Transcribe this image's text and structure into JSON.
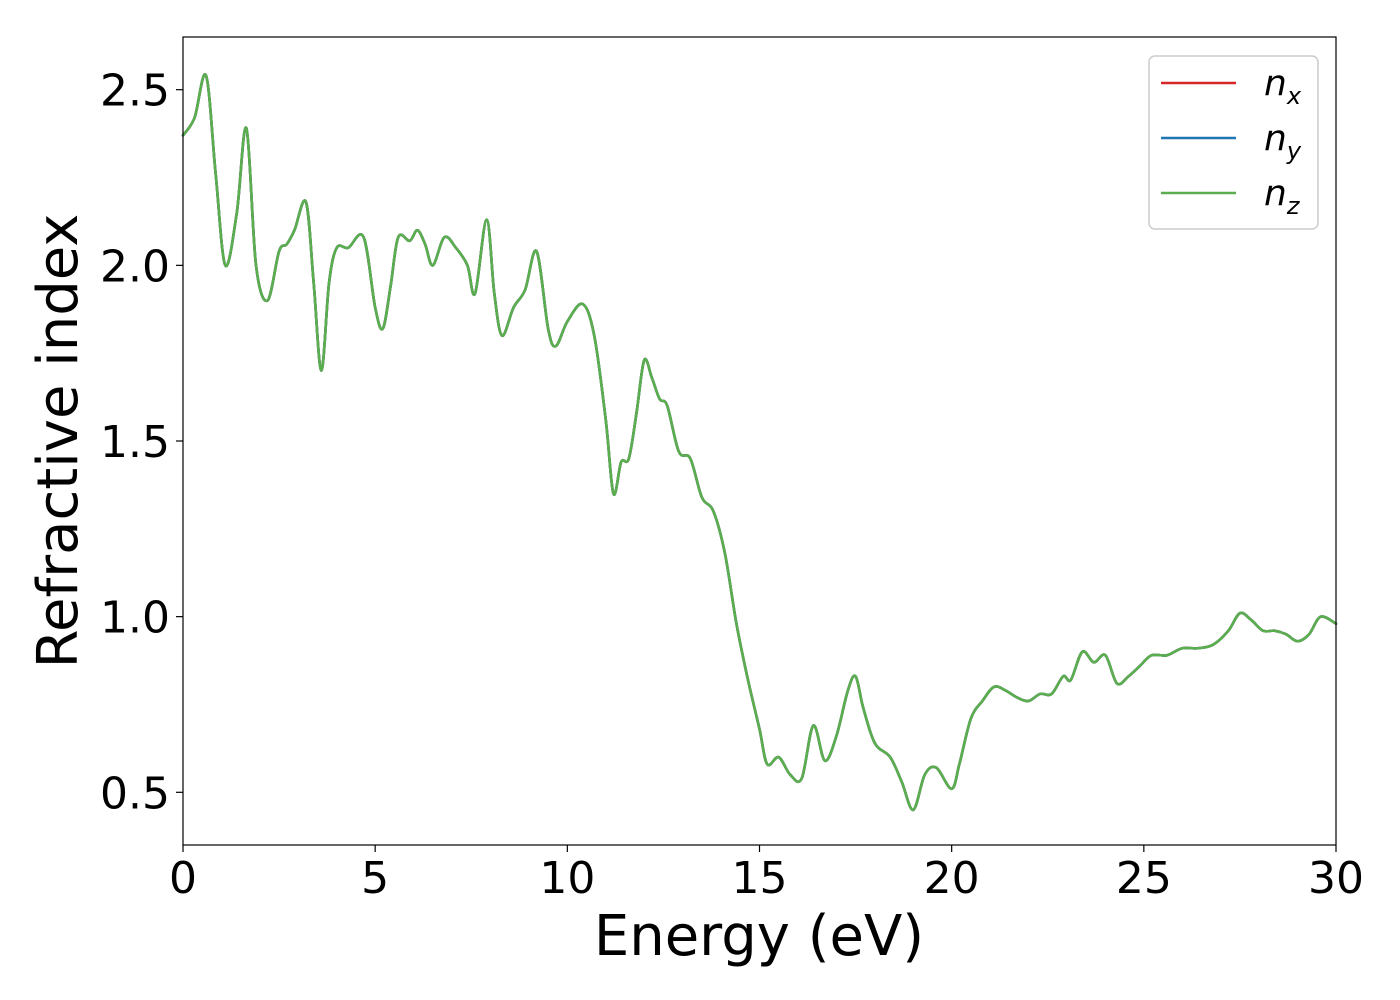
{
  "chart_data": {
    "type": "line",
    "title": "",
    "xlabel": "Energy (eV)",
    "ylabel": "Refractive index",
    "xlim": [
      0,
      30
    ],
    "ylim": [
      0.35,
      2.65
    ],
    "xticks": [
      0,
      5,
      10,
      15,
      20,
      25,
      30
    ],
    "xtick_labels": [
      "0",
      "5",
      "10",
      "15",
      "20",
      "25",
      "30"
    ],
    "yticks": [
      0.5,
      1.0,
      1.5,
      2.0,
      2.5
    ],
    "ytick_labels": [
      "0.5",
      "1.0",
      "1.5",
      "2.0",
      "2.5"
    ],
    "grid": false,
    "legend_position": "top-right",
    "x": [
      0,
      0.3,
      0.6,
      0.85,
      1.1,
      1.4,
      1.65,
      1.9,
      2.2,
      2.5,
      2.7,
      2.9,
      3.2,
      3.4,
      3.6,
      3.8,
      4.0,
      4.3,
      4.7,
      5.0,
      5.2,
      5.4,
      5.6,
      5.9,
      6.1,
      6.3,
      6.5,
      6.8,
      7.1,
      7.4,
      7.6,
      7.9,
      8.1,
      8.3,
      8.6,
      8.9,
      9.2,
      9.5,
      9.7,
      10.0,
      10.4,
      10.7,
      11.0,
      11.2,
      11.4,
      11.6,
      11.8,
      12.0,
      12.2,
      12.4,
      12.6,
      12.9,
      13.2,
      13.5,
      13.8,
      14.1,
      14.4,
      14.7,
      15.0,
      15.2,
      15.5,
      15.8,
      16.1,
      16.4,
      16.7,
      17.0,
      17.3,
      17.5,
      17.7,
      18.0,
      18.4,
      18.7,
      19.0,
      19.3,
      19.6,
      20.0,
      20.2,
      20.5,
      20.8,
      21.1,
      21.4,
      21.7,
      22.0,
      22.3,
      22.6,
      22.9,
      23.1,
      23.4,
      23.7,
      24.0,
      24.3,
      24.6,
      24.9,
      25.2,
      25.6,
      26.0,
      26.4,
      26.8,
      27.2,
      27.5,
      27.8,
      28.1,
      28.4,
      28.7,
      29.0,
      29.3,
      29.6,
      30.0
    ],
    "series": [
      {
        "name": "n_x",
        "color": "#d62728",
        "values": [
          2.37,
          2.42,
          2.54,
          2.26,
          2.0,
          2.15,
          2.39,
          2.0,
          1.9,
          2.04,
          2.06,
          2.1,
          2.18,
          1.95,
          1.7,
          1.95,
          2.05,
          2.05,
          2.08,
          1.88,
          1.82,
          1.94,
          2.08,
          2.07,
          2.1,
          2.06,
          2.0,
          2.08,
          2.05,
          2.0,
          1.92,
          2.13,
          1.92,
          1.8,
          1.88,
          1.93,
          2.04,
          1.82,
          1.77,
          1.84,
          1.89,
          1.8,
          1.56,
          1.35,
          1.44,
          1.45,
          1.58,
          1.73,
          1.68,
          1.62,
          1.6,
          1.47,
          1.45,
          1.34,
          1.3,
          1.18,
          0.98,
          0.82,
          0.68,
          0.58,
          0.6,
          0.55,
          0.54,
          0.69,
          0.59,
          0.66,
          0.79,
          0.83,
          0.74,
          0.64,
          0.6,
          0.53,
          0.45,
          0.55,
          0.57,
          0.51,
          0.58,
          0.71,
          0.76,
          0.8,
          0.79,
          0.77,
          0.76,
          0.78,
          0.78,
          0.83,
          0.82,
          0.9,
          0.87,
          0.89,
          0.81,
          0.83,
          0.86,
          0.89,
          0.89,
          0.91,
          0.91,
          0.92,
          0.96,
          1.01,
          0.99,
          0.96,
          0.96,
          0.95,
          0.93,
          0.95,
          1.0,
          0.98
        ]
      },
      {
        "name": "n_y",
        "color": "#1f77b4",
        "values": [
          2.37,
          2.42,
          2.54,
          2.26,
          2.0,
          2.15,
          2.39,
          2.0,
          1.9,
          2.04,
          2.06,
          2.1,
          2.18,
          1.95,
          1.7,
          1.95,
          2.05,
          2.05,
          2.08,
          1.88,
          1.82,
          1.94,
          2.08,
          2.07,
          2.1,
          2.06,
          2.0,
          2.08,
          2.05,
          2.0,
          1.92,
          2.13,
          1.92,
          1.8,
          1.88,
          1.93,
          2.04,
          1.82,
          1.77,
          1.84,
          1.89,
          1.8,
          1.56,
          1.35,
          1.44,
          1.45,
          1.58,
          1.73,
          1.68,
          1.62,
          1.6,
          1.47,
          1.45,
          1.34,
          1.3,
          1.18,
          0.98,
          0.82,
          0.68,
          0.58,
          0.6,
          0.55,
          0.54,
          0.69,
          0.59,
          0.66,
          0.79,
          0.83,
          0.74,
          0.64,
          0.6,
          0.53,
          0.45,
          0.55,
          0.57,
          0.51,
          0.58,
          0.71,
          0.76,
          0.8,
          0.79,
          0.77,
          0.76,
          0.78,
          0.78,
          0.83,
          0.82,
          0.9,
          0.87,
          0.89,
          0.81,
          0.83,
          0.86,
          0.89,
          0.89,
          0.91,
          0.91,
          0.92,
          0.96,
          1.01,
          0.99,
          0.96,
          0.96,
          0.95,
          0.93,
          0.95,
          1.0,
          0.98
        ]
      },
      {
        "name": "n_z",
        "color": "#5aae4e",
        "values": [
          2.37,
          2.42,
          2.54,
          2.26,
          2.0,
          2.15,
          2.39,
          2.0,
          1.9,
          2.04,
          2.06,
          2.1,
          2.18,
          1.95,
          1.7,
          1.95,
          2.05,
          2.05,
          2.08,
          1.88,
          1.82,
          1.94,
          2.08,
          2.07,
          2.1,
          2.06,
          2.0,
          2.08,
          2.05,
          2.0,
          1.92,
          2.13,
          1.92,
          1.8,
          1.88,
          1.93,
          2.04,
          1.82,
          1.77,
          1.84,
          1.89,
          1.8,
          1.56,
          1.35,
          1.44,
          1.45,
          1.58,
          1.73,
          1.68,
          1.62,
          1.6,
          1.47,
          1.45,
          1.34,
          1.3,
          1.18,
          0.98,
          0.82,
          0.68,
          0.58,
          0.6,
          0.55,
          0.54,
          0.69,
          0.59,
          0.66,
          0.79,
          0.83,
          0.74,
          0.64,
          0.6,
          0.53,
          0.45,
          0.55,
          0.57,
          0.51,
          0.58,
          0.71,
          0.76,
          0.8,
          0.79,
          0.77,
          0.76,
          0.78,
          0.78,
          0.83,
          0.82,
          0.9,
          0.87,
          0.89,
          0.81,
          0.83,
          0.86,
          0.89,
          0.89,
          0.91,
          0.91,
          0.92,
          0.96,
          1.01,
          0.99,
          0.96,
          0.96,
          0.95,
          0.93,
          0.95,
          1.0,
          0.98
        ]
      }
    ],
    "legend": [
      {
        "symbol": "n",
        "sub": "x",
        "color": "#d62728"
      },
      {
        "symbol": "n",
        "sub": "y",
        "color": "#1f77b4"
      },
      {
        "symbol": "n",
        "sub": "z",
        "color": "#5aae4e"
      }
    ]
  }
}
